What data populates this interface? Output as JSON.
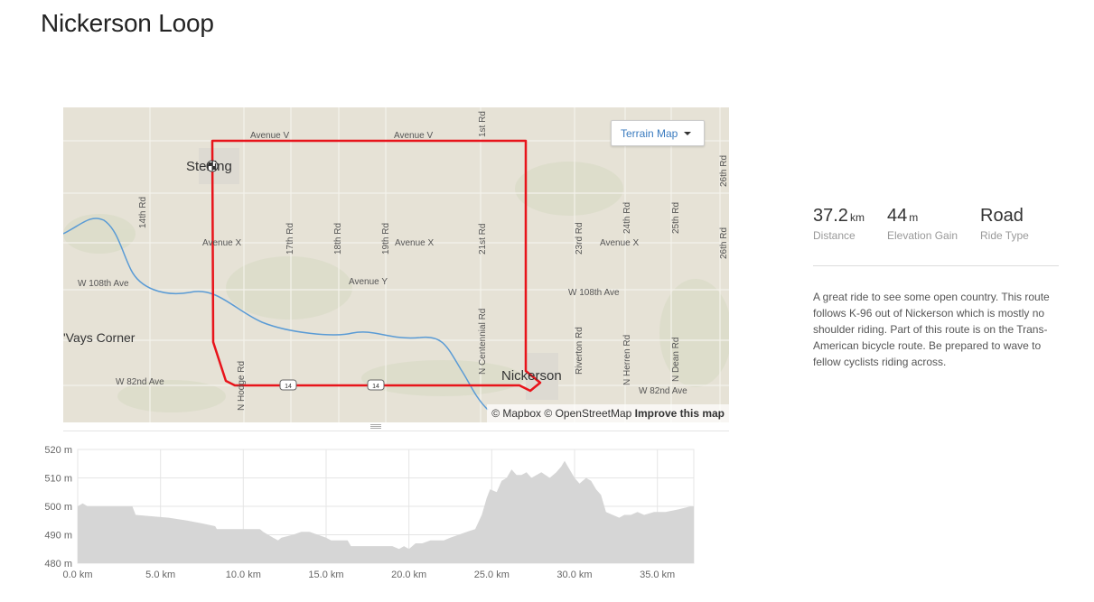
{
  "page": {
    "title": "Nickerson Loop"
  },
  "map": {
    "terrain_button": "Terrain Map",
    "attribution": {
      "mapbox": "© Mapbox",
      "osm": "© OpenStreetMap",
      "improve": "Improve this map"
    },
    "route_color": "#e8141b",
    "water_color": "#5a9bd5",
    "labels": {
      "avenue_v_1": "Avenue V",
      "avenue_v_2": "Avenue V",
      "sterling": "Sterling",
      "avenue_x_1": "Avenue X",
      "avenue_x_2": "Avenue X",
      "avenue_x_3": "Avenue X",
      "w108_1": "W 108th Ave",
      "w108_2": "W 108th Ave",
      "avenue_y": "Avenue Y",
      "vays_corner": "'Vays Corner",
      "w82_1": "W 82nd Ave",
      "w82_2": "W 82nd Ave",
      "nickerson": "Nickerson",
      "r14": "14th Rd",
      "r17": "17th Rd",
      "r18": "18th Rd",
      "r19": "19th Rd",
      "r21": "21st Rd",
      "r21_top": "1st Rd",
      "r23": "23rd Rd",
      "r24": "24th Rd",
      "r25": "25th Rd",
      "r26a": "26th Rd",
      "r26b": "26th Rd",
      "n_hodge": "N Hodge Rd",
      "n_centennial": "N Centennial Rd",
      "riverton": "Riverton Rd",
      "n_herren": "N Herren Rd",
      "n_dean": "N Dean Rd",
      "hwy_shield_1": "14",
      "hwy_shield_2": "14"
    }
  },
  "stats": {
    "distance": {
      "value": "37.2",
      "unit": "km",
      "label": "Distance"
    },
    "elevation": {
      "value": "44",
      "unit": "m",
      "label": "Elevation Gain"
    },
    "ride_type": {
      "value": "Road",
      "label": "Ride Type"
    }
  },
  "description": "A great ride to see some open country. This route follows K-96 out of Nickerson which is mostly no shoulder riding. Part of this route is on the Trans-American bicycle route. Be prepared to wave to fellow cyclists riding across.",
  "chart_data": {
    "type": "area",
    "title": "",
    "xlabel": "",
    "ylabel": "",
    "x_unit": "km",
    "y_unit": "m",
    "xlim": [
      0,
      37.2
    ],
    "ylim": [
      480,
      520
    ],
    "x_ticks": [
      "0.0 km",
      "5.0 km",
      "10.0 km",
      "15.0 km",
      "20.0 km",
      "25.0 km",
      "30.0 km",
      "35.0 km"
    ],
    "x_tick_values": [
      0,
      5,
      10,
      15,
      20,
      25,
      30,
      35
    ],
    "y_ticks": [
      "480 m",
      "490 m",
      "500 m",
      "510 m",
      "520 m"
    ],
    "y_tick_values": [
      480,
      490,
      500,
      510,
      520
    ],
    "fill_color": "#d6d6d6",
    "grid": true,
    "series": [
      {
        "x": [
          0,
          0.3,
          0.6,
          0.9,
          3.3,
          3.5,
          5.5,
          6.6,
          7.5,
          8.3,
          8.4,
          11.0,
          11.2,
          11.5,
          11.8,
          12.1,
          12.3,
          13.0,
          13.5,
          14.0,
          14.5,
          15.0,
          15.3,
          16.3,
          16.5,
          18.2,
          19.0,
          19.4,
          19.7,
          20.0,
          20.4,
          20.8,
          21.3,
          21.7,
          22.1,
          22.5,
          23.0,
          23.5,
          24.0,
          24.4,
          24.7,
          24.9,
          25.3,
          25.6,
          25.9,
          26.2,
          26.5,
          26.8,
          27.1,
          27.4,
          28.0,
          28.5,
          28.9,
          29.2,
          29.4,
          29.7,
          30.0,
          30.3,
          30.7,
          31.0,
          31.3,
          31.6,
          31.9,
          32.3,
          32.7,
          33.0,
          33.4,
          33.8,
          34.2,
          34.8,
          35.5,
          36.3,
          37.0,
          37.2
        ],
        "y": [
          500,
          501,
          500,
          500,
          500,
          497,
          496,
          495,
          494,
          493,
          492,
          492,
          491,
          490,
          489,
          488,
          489,
          490,
          491,
          491,
          490,
          489,
          488,
          488,
          486,
          486,
          486,
          485,
          486,
          485,
          487,
          487,
          488,
          488,
          488,
          489,
          490,
          491,
          492,
          497,
          503,
          506,
          505,
          509,
          510,
          513,
          511,
          511,
          512,
          510,
          512,
          510,
          512,
          514,
          516,
          513,
          510,
          508,
          510,
          509,
          506,
          504,
          498,
          497,
          496,
          497,
          497,
          498,
          497,
          498,
          498,
          499,
          500,
          500
        ]
      }
    ]
  }
}
